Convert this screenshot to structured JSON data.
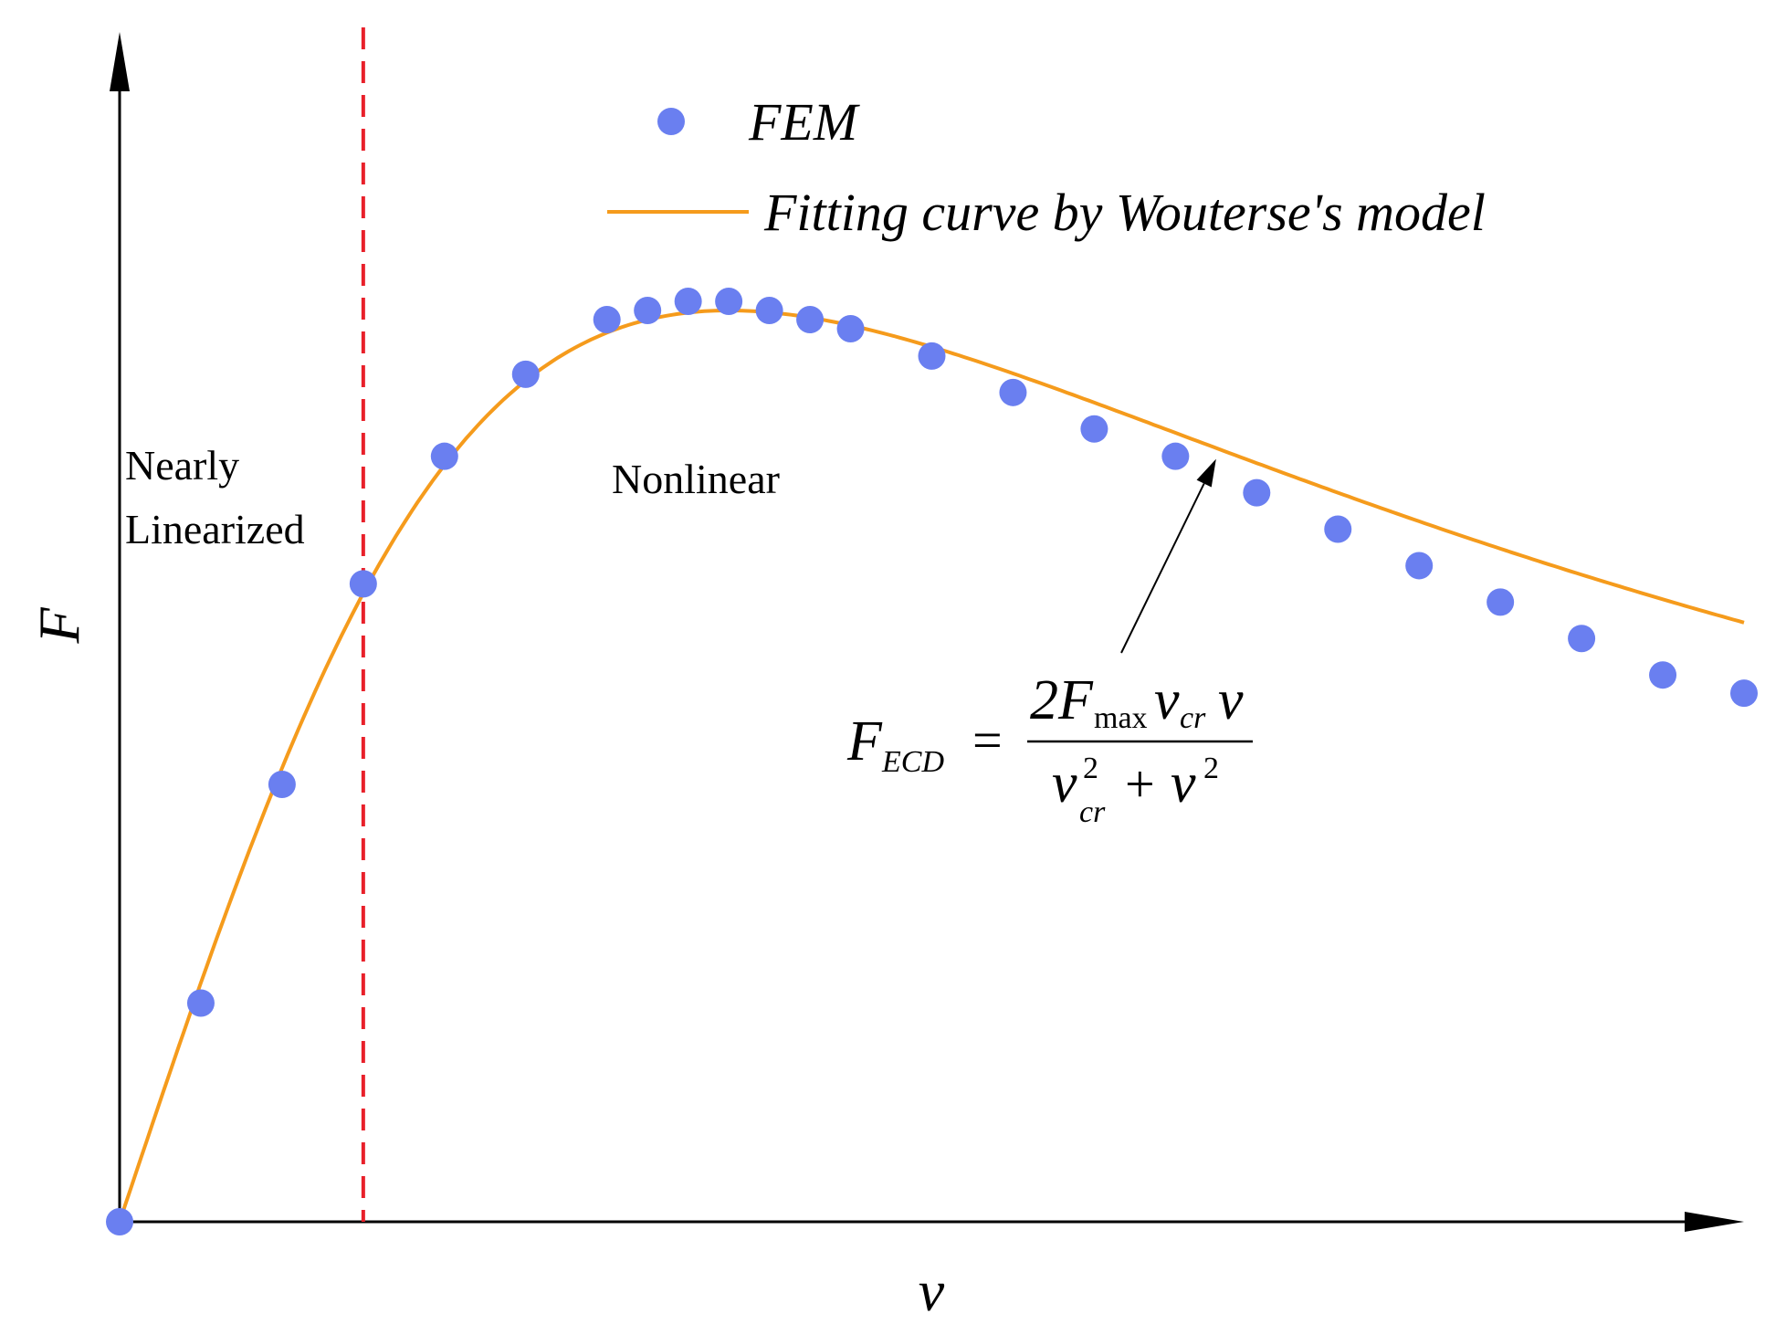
{
  "chart_data": {
    "type": "scatter",
    "title": "",
    "xlabel": "v",
    "ylabel": "F",
    "xlim": [
      0,
      20
    ],
    "ylim": [
      0,
      1.1
    ],
    "grid": false,
    "legend_position": "top-right",
    "colors": {
      "points": "#6a7ff0",
      "curve": "#f59b1c",
      "divider": "#e8202a",
      "axis": "#000000"
    },
    "series": [
      {
        "name": "FEM",
        "style": "markers",
        "x": [
          0,
          1,
          2,
          3,
          4,
          5,
          6,
          6.5,
          7,
          7.5,
          8,
          8.5,
          9,
          10,
          11,
          12,
          13,
          14,
          15,
          16,
          17,
          18,
          19,
          20
        ],
        "y": [
          0,
          0.24,
          0.48,
          0.7,
          0.84,
          0.93,
          0.99,
          1.0,
          1.01,
          1.01,
          1.0,
          0.99,
          0.98,
          0.95,
          0.91,
          0.87,
          0.84,
          0.8,
          0.76,
          0.72,
          0.68,
          0.64,
          0.6,
          0.58
        ]
      },
      {
        "name": "Fitting curve by Wouterse's model",
        "style": "line",
        "model": {
          "F_max": 1.0,
          "v_cr": 7.5
        }
      }
    ],
    "vline": {
      "x": 3
    },
    "annotations": {
      "region_left_line1": "Nearly",
      "region_left_line2": "Linearized",
      "region_right": "Nonlinear",
      "formula": {
        "lhs": "F",
        "lhs_sub": "ECD",
        "eq": "=",
        "num_coef": "2F",
        "num_sub1": "max",
        "num_v1": "v",
        "num_sub2": "cr",
        "num_v2": "v",
        "den_v1": "v",
        "den_sup1": "2",
        "den_sub1": "cr",
        "den_plus": "+",
        "den_v2": "v",
        "den_sup2": "2"
      },
      "arrow_target_x": 13.5
    }
  }
}
